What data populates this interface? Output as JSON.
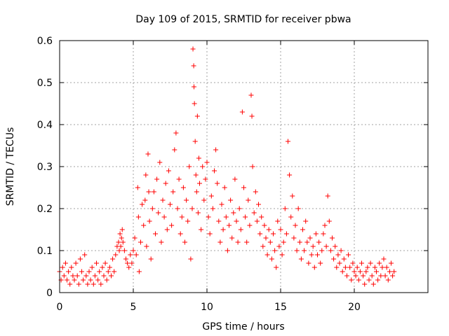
{
  "chart_data": {
    "type": "scatter",
    "title": "Day 109 of 2015, SRMTID for receiver pbwa",
    "xlabel": "GPS time / hours",
    "ylabel": "SRMTID / TECUs",
    "xlim": [
      0,
      25
    ],
    "ylim": [
      0,
      0.6
    ],
    "x_ticks": [
      "0",
      "5",
      "10",
      "15",
      "20"
    ],
    "x_tick_values": [
      0,
      5,
      10,
      15,
      20
    ],
    "y_ticks": [
      "0",
      "0.1",
      "0.2",
      "0.3",
      "0.4",
      "0.5",
      "0.6"
    ],
    "y_tick_values": [
      0,
      0.1,
      0.2,
      0.3,
      0.4,
      0.5,
      0.6
    ],
    "grid": true,
    "marker": "+",
    "series": [
      {
        "name": "SRMTID",
        "color": "#ff0000",
        "points": [
          [
            0.0,
            0.05
          ],
          [
            0.1,
            0.03
          ],
          [
            0.2,
            0.06
          ],
          [
            0.3,
            0.04
          ],
          [
            0.4,
            0.07
          ],
          [
            0.5,
            0.03
          ],
          [
            0.6,
            0.05
          ],
          [
            0.7,
            0.02
          ],
          [
            0.8,
            0.06
          ],
          [
            0.9,
            0.04
          ],
          [
            1.0,
            0.03
          ],
          [
            1.1,
            0.07
          ],
          [
            1.2,
            0.04
          ],
          [
            1.3,
            0.02
          ],
          [
            1.4,
            0.08
          ],
          [
            1.5,
            0.05
          ],
          [
            1.6,
            0.03
          ],
          [
            1.7,
            0.09
          ],
          [
            1.8,
            0.04
          ],
          [
            1.9,
            0.02
          ],
          [
            2.0,
            0.05
          ],
          [
            2.1,
            0.03
          ],
          [
            2.2,
            0.06
          ],
          [
            2.3,
            0.02
          ],
          [
            2.4,
            0.04
          ],
          [
            2.5,
            0.07
          ],
          [
            2.6,
            0.03
          ],
          [
            2.7,
            0.05
          ],
          [
            2.8,
            0.02
          ],
          [
            2.9,
            0.06
          ],
          [
            3.0,
            0.04
          ],
          [
            3.1,
            0.07
          ],
          [
            3.2,
            0.03
          ],
          [
            3.3,
            0.05
          ],
          [
            3.4,
            0.06
          ],
          [
            3.5,
            0.04
          ],
          [
            3.6,
            0.08
          ],
          [
            3.7,
            0.05
          ],
          [
            3.8,
            0.09
          ],
          [
            3.9,
            0.11
          ],
          [
            4.0,
            0.12
          ],
          [
            4.05,
            0.1
          ],
          [
            4.1,
            0.14
          ],
          [
            4.15,
            0.11
          ],
          [
            4.2,
            0.13
          ],
          [
            4.25,
            0.15
          ],
          [
            4.3,
            0.12
          ],
          [
            4.4,
            0.1
          ],
          [
            4.5,
            0.08
          ],
          [
            4.6,
            0.07
          ],
          [
            4.7,
            0.06
          ],
          [
            4.8,
            0.09
          ],
          [
            4.9,
            0.07
          ],
          [
            5.0,
            0.1
          ],
          [
            5.1,
            0.13
          ],
          [
            5.2,
            0.09
          ],
          [
            5.3,
            0.25
          ],
          [
            5.35,
            0.18
          ],
          [
            5.4,
            0.05
          ],
          [
            5.5,
            0.12
          ],
          [
            5.6,
            0.21
          ],
          [
            5.7,
            0.16
          ],
          [
            5.8,
            0.22
          ],
          [
            5.85,
            0.28
          ],
          [
            5.9,
            0.11
          ],
          [
            6.0,
            0.33
          ],
          [
            6.05,
            0.24
          ],
          [
            6.1,
            0.17
          ],
          [
            6.2,
            0.08
          ],
          [
            6.3,
            0.2
          ],
          [
            6.4,
            0.24
          ],
          [
            6.5,
            0.14
          ],
          [
            6.6,
            0.27
          ],
          [
            6.7,
            0.19
          ],
          [
            6.8,
            0.31
          ],
          [
            6.9,
            0.12
          ],
          [
            7.0,
            0.22
          ],
          [
            7.1,
            0.18
          ],
          [
            7.2,
            0.26
          ],
          [
            7.3,
            0.15
          ],
          [
            7.4,
            0.29
          ],
          [
            7.5,
            0.21
          ],
          [
            7.6,
            0.16
          ],
          [
            7.7,
            0.24
          ],
          [
            7.8,
            0.34
          ],
          [
            7.9,
            0.38
          ],
          [
            8.0,
            0.2
          ],
          [
            8.1,
            0.27
          ],
          [
            8.2,
            0.14
          ],
          [
            8.3,
            0.18
          ],
          [
            8.4,
            0.25
          ],
          [
            8.5,
            0.12
          ],
          [
            8.6,
            0.22
          ],
          [
            8.7,
            0.17
          ],
          [
            8.8,
            0.3
          ],
          [
            8.9,
            0.08
          ],
          [
            9.0,
            0.2
          ],
          [
            9.05,
            0.58
          ],
          [
            9.1,
            0.54
          ],
          [
            9.12,
            0.49
          ],
          [
            9.15,
            0.45
          ],
          [
            9.2,
            0.36
          ],
          [
            9.25,
            0.28
          ],
          [
            9.3,
            0.24
          ],
          [
            9.35,
            0.42
          ],
          [
            9.4,
            0.19
          ],
          [
            9.45,
            0.32
          ],
          [
            9.5,
            0.26
          ],
          [
            9.6,
            0.15
          ],
          [
            9.7,
            0.3
          ],
          [
            9.8,
            0.22
          ],
          [
            9.9,
            0.27
          ],
          [
            10.0,
            0.31
          ],
          [
            10.1,
            0.18
          ],
          [
            10.2,
            0.14
          ],
          [
            10.3,
            0.23
          ],
          [
            10.4,
            0.2
          ],
          [
            10.5,
            0.29
          ],
          [
            10.6,
            0.34
          ],
          [
            10.7,
            0.26
          ],
          [
            10.8,
            0.17
          ],
          [
            10.9,
            0.12
          ],
          [
            11.0,
            0.21
          ],
          [
            11.1,
            0.15
          ],
          [
            11.2,
            0.25
          ],
          [
            11.3,
            0.18
          ],
          [
            11.4,
            0.1
          ],
          [
            11.5,
            0.16
          ],
          [
            11.6,
            0.22
          ],
          [
            11.7,
            0.13
          ],
          [
            11.8,
            0.19
          ],
          [
            11.9,
            0.27
          ],
          [
            12.0,
            0.17
          ],
          [
            12.1,
            0.12
          ],
          [
            12.2,
            0.2
          ],
          [
            12.3,
            0.15
          ],
          [
            12.4,
            0.43
          ],
          [
            12.5,
            0.25
          ],
          [
            12.6,
            0.18
          ],
          [
            12.7,
            0.12
          ],
          [
            12.8,
            0.22
          ],
          [
            12.9,
            0.16
          ],
          [
            13.0,
            0.47
          ],
          [
            13.05,
            0.42
          ],
          [
            13.1,
            0.3
          ],
          [
            13.2,
            0.19
          ],
          [
            13.3,
            0.24
          ],
          [
            13.4,
            0.17
          ],
          [
            13.5,
            0.21
          ],
          [
            13.6,
            0.14
          ],
          [
            13.7,
            0.18
          ],
          [
            13.8,
            0.11
          ],
          [
            13.9,
            0.16
          ],
          [
            14.0,
            0.13
          ],
          [
            14.1,
            0.09
          ],
          [
            14.2,
            0.15
          ],
          [
            14.3,
            0.12
          ],
          [
            14.4,
            0.08
          ],
          [
            14.5,
            0.14
          ],
          [
            14.6,
            0.1
          ],
          [
            14.7,
            0.06
          ],
          [
            14.8,
            0.17
          ],
          [
            14.9,
            0.11
          ],
          [
            15.0,
            0.15
          ],
          [
            15.1,
            0.09
          ],
          [
            15.2,
            0.12
          ],
          [
            15.3,
            0.2
          ],
          [
            15.4,
            0.14
          ],
          [
            15.5,
            0.36
          ],
          [
            15.6,
            0.28
          ],
          [
            15.7,
            0.18
          ],
          [
            15.8,
            0.23
          ],
          [
            15.9,
            0.13
          ],
          [
            16.0,
            0.16
          ],
          [
            16.1,
            0.1
          ],
          [
            16.2,
            0.2
          ],
          [
            16.3,
            0.12
          ],
          [
            16.4,
            0.08
          ],
          [
            16.5,
            0.15
          ],
          [
            16.6,
            0.1
          ],
          [
            16.7,
            0.17
          ],
          [
            16.8,
            0.12
          ],
          [
            16.9,
            0.07
          ],
          [
            17.0,
            0.13
          ],
          [
            17.1,
            0.09
          ],
          [
            17.2,
            0.11
          ],
          [
            17.3,
            0.06
          ],
          [
            17.4,
            0.14
          ],
          [
            17.5,
            0.09
          ],
          [
            17.6,
            0.12
          ],
          [
            17.7,
            0.07
          ],
          [
            17.8,
            0.1
          ],
          [
            17.9,
            0.14
          ],
          [
            18.0,
            0.16
          ],
          [
            18.1,
            0.11
          ],
          [
            18.2,
            0.23
          ],
          [
            18.3,
            0.17
          ],
          [
            18.4,
            0.1
          ],
          [
            18.5,
            0.13
          ],
          [
            18.6,
            0.08
          ],
          [
            18.7,
            0.11
          ],
          [
            18.8,
            0.06
          ],
          [
            18.9,
            0.09
          ],
          [
            19.0,
            0.07
          ],
          [
            19.1,
            0.1
          ],
          [
            19.2,
            0.05
          ],
          [
            19.3,
            0.08
          ],
          [
            19.4,
            0.06
          ],
          [
            19.5,
            0.04
          ],
          [
            19.6,
            0.09
          ],
          [
            19.7,
            0.06
          ],
          [
            19.8,
            0.03
          ],
          [
            19.9,
            0.07
          ],
          [
            20.0,
            0.05
          ],
          [
            20.1,
            0.04
          ],
          [
            20.2,
            0.06
          ],
          [
            20.3,
            0.03
          ],
          [
            20.4,
            0.05
          ],
          [
            20.5,
            0.07
          ],
          [
            20.6,
            0.04
          ],
          [
            20.7,
            0.02
          ],
          [
            20.8,
            0.05
          ],
          [
            20.9,
            0.06
          ],
          [
            21.0,
            0.03
          ],
          [
            21.1,
            0.07
          ],
          [
            21.2,
            0.04
          ],
          [
            21.3,
            0.02
          ],
          [
            21.4,
            0.06
          ],
          [
            21.5,
            0.05
          ],
          [
            21.6,
            0.03
          ],
          [
            21.7,
            0.07
          ],
          [
            21.8,
            0.04
          ],
          [
            21.9,
            0.06
          ],
          [
            22.0,
            0.08
          ],
          [
            22.1,
            0.04
          ],
          [
            22.2,
            0.06
          ],
          [
            22.3,
            0.03
          ],
          [
            22.4,
            0.05
          ],
          [
            22.5,
            0.07
          ],
          [
            22.6,
            0.04
          ],
          [
            22.7,
            0.05
          ]
        ]
      }
    ]
  }
}
